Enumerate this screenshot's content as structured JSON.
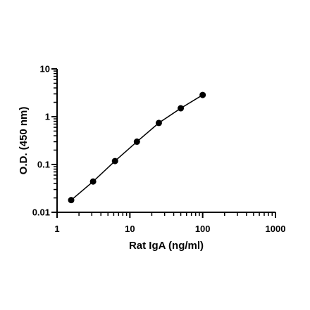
{
  "chart_data": {
    "type": "scatter",
    "title": "",
    "xlabel": "Rat IgA (ng/ml)",
    "ylabel": "O.D. (450 nm)",
    "xscale": "log",
    "yscale": "log",
    "xlim": [
      1,
      1000
    ],
    "ylim": [
      0.01,
      10
    ],
    "xticks": [
      "1",
      "10",
      "100",
      "1000"
    ],
    "yticks": [
      "0.01",
      "0.1",
      "1",
      "10"
    ],
    "grid": false,
    "legend": "none",
    "fit_line": true,
    "series": [
      {
        "x": [
          1.5625,
          3.125,
          6.25,
          12.5,
          25,
          50,
          100
        ],
        "y": [
          0.018,
          0.044,
          0.118,
          0.3,
          0.74,
          1.5,
          2.85
        ]
      }
    ],
    "marker_color": "#000000",
    "line_color": "#000000"
  }
}
